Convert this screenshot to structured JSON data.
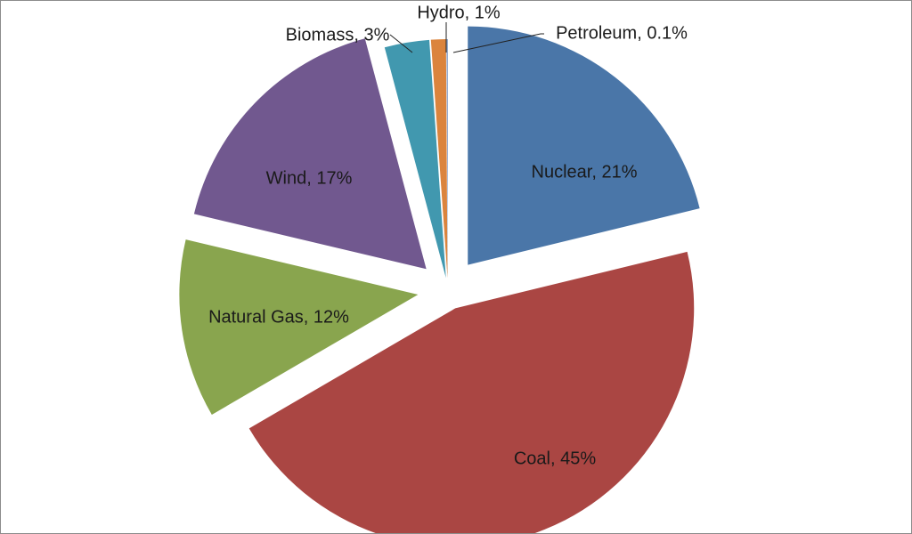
{
  "chart_data": {
    "type": "pie",
    "slices": [
      {
        "label": "Nuclear",
        "display": "Nuclear, 21%",
        "value": 21,
        "color": "#4A76A8"
      },
      {
        "label": "Coal",
        "display": "Coal, 45%",
        "value": 45,
        "color": "#AA4643"
      },
      {
        "label": "Natural Gas",
        "display": "Natural Gas, 12%",
        "value": 12,
        "color": "#89A54E"
      },
      {
        "label": "Wind",
        "display": "Wind, 17%",
        "value": 17,
        "color": "#71588F"
      },
      {
        "label": "Biomass",
        "display": "Biomass, 3%",
        "value": 3,
        "color": "#4198AF"
      },
      {
        "label": "Hydro",
        "display": "Hydro, 1%",
        "value": 1,
        "color": "#DB843D"
      },
      {
        "label": "Petroleum",
        "display": "Petroleum, 0.1%",
        "value": 0.1,
        "color": "#93A9CF"
      }
    ],
    "exploded": true,
    "legend": "none"
  }
}
